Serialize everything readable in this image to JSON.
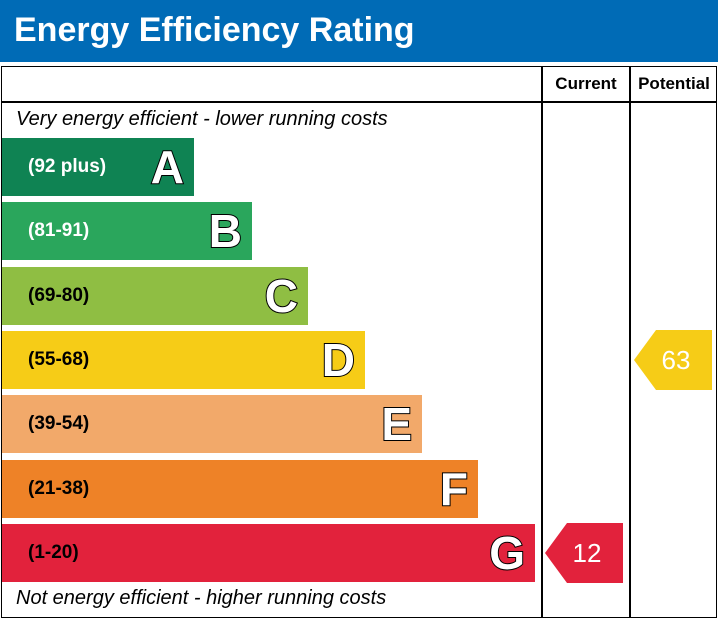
{
  "title": "Energy Efficiency Rating",
  "columns": {
    "current": "Current",
    "potential": "Potential"
  },
  "notes": {
    "top": "Very energy efficient - lower running costs",
    "bottom": "Not energy efficient - higher running costs"
  },
  "chart_data": {
    "type": "bar",
    "title": "Energy Efficiency Rating",
    "categories": [
      "A",
      "B",
      "C",
      "D",
      "E",
      "F",
      "G"
    ],
    "ranges": [
      "(92 plus)",
      "(81-91)",
      "(69-80)",
      "(55-68)",
      "(39-54)",
      "(21-38)",
      "(1-20)"
    ],
    "colors": [
      "#0f8353",
      "#2aa65c",
      "#8fbe43",
      "#f6cc17",
      "#f2a96a",
      "#ee8227",
      "#e2223c"
    ],
    "current": {
      "label": "Current",
      "value": 12,
      "band": "G",
      "color": "#e2223c"
    },
    "potential": {
      "label": "Potential",
      "value": 63,
      "band": "D",
      "color": "#f6cc17"
    }
  }
}
